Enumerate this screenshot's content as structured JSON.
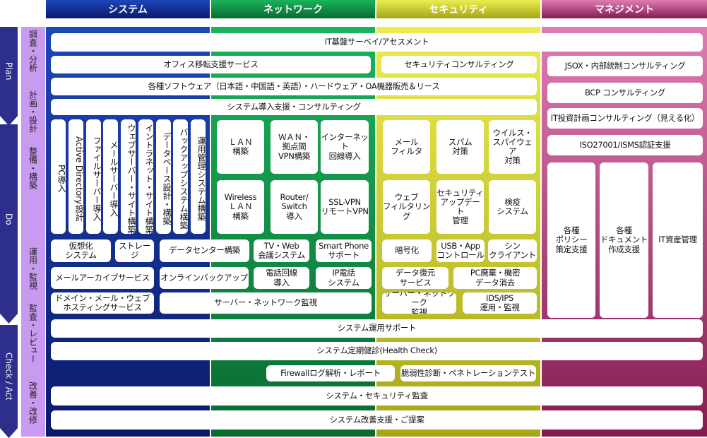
{
  "columns": [
    {
      "label": "システム",
      "color": "#1d47b8",
      "dark": "#0a1a6a"
    },
    {
      "label": "ネットワーク",
      "color": "#1ab35c",
      "dark": "#0a6a32"
    },
    {
      "label": "セキュリティ",
      "color": "#ecec52",
      "dark": "#a6a616"
    },
    {
      "label": "マネジメント",
      "color": "#e07cb4",
      "dark": "#841a50"
    }
  ],
  "phases": {
    "plan": "Plan",
    "do": "Do",
    "check_act": "Check / Act"
  },
  "stages": [
    "調査・分析",
    "計画・設計",
    "整備・構築",
    "運用・監視",
    "監査・レビュー",
    "改善・改修"
  ],
  "boxes": [
    "IT基盤サーベイ/アセスメント",
    "オフィス移転支援サービス",
    "セキュリティコンサルティング",
    "JSOX・内部統制コンサルティング",
    "各種ソフトウェア（日本語・中国語・英語）・ハードウェア・OA機器販売＆リース",
    "BCP コンサルティング",
    "システム導入支援・コンサルティング",
    "IT投資計画コンサルティング（見える化）",
    "ISO27001/ISMS認証支援",
    "PC導入",
    "Active Directory設計",
    "ファイルサーバー導入",
    "メールサーバー導入",
    "ウェブサーバー・サイト構築",
    "イントラネット・サイト構築",
    "データベース設計・構築",
    "バックアップシステム構築",
    "運用管理システム構築",
    "ＬＡＮ\n構築",
    "ＷＡＮ・\n拠点間\nVPN構築",
    "インターネット\n回線導入",
    "Wireless\nＬＡＮ\n構築",
    "Router/\nSwitch\n導入",
    "SSL-VPN\nリモートVPN",
    "メール\nフィルタ",
    "スパム\n対策",
    "ウイルス・\nスパイウェア\n対策",
    "ウェブ\nフィルタリング",
    "セキュリティ\nアップデート\n管理",
    "検疫\nシステム",
    "各種\nポリシー\n策定支援",
    "各種\nドキュメント\n作成支援",
    "IT資産管理",
    "仮想化\nシステム",
    "ストレージ",
    "データセンター構築",
    "TV・Web\n会議システム",
    "Smart Phone\nサポート",
    "暗号化",
    "USB・App\nコントロール",
    "シン\nクライアント",
    "メールアーカイブサービス",
    "オンラインバックアップ",
    "電話回線\n導入",
    "IP電話\nシステム",
    "データ復元\nサービス",
    "PC廃棄・機密\nデータ消去",
    "ドメイン・メール・ウェブ\nホスティングサービス",
    "サーバー・ネットワーク監視",
    "サーバー・ネットワーク\n監視",
    "IDS/IPS\n運用・監視",
    "システム運用サポート",
    "システム定期健診(Health Check)",
    "Firewallログ解析・レポート",
    "脆弱性診断・ペネトレーションテスト",
    "システム・セキュリティ監査",
    "システム改善支援・ご提案"
  ]
}
